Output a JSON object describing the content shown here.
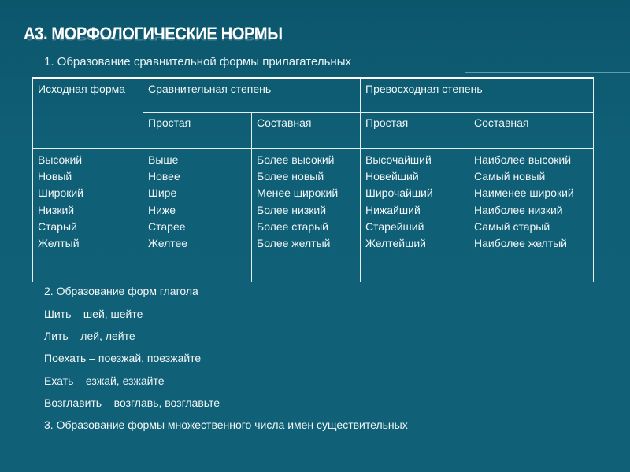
{
  "title": "А3. МОРФОЛОГИЧЕСКИЕ НОРМЫ",
  "subtitle": "1. Образование сравнительной формы прилагательных",
  "table": {
    "h_source": "Исходная форма",
    "h_comparative": "Сравнительная степень",
    "h_superlative": "Превосходная степень",
    "h_simple": "Простая",
    "h_compound": "Составная",
    "columns": [
      [
        "Высокий",
        "Новый",
        "Широкий",
        "Низкий",
        "Старый",
        "Желтый"
      ],
      [
        "Выше",
        "Новее",
        "Шире",
        "Ниже",
        "Старее",
        "Желтее"
      ],
      [
        "Более высокий",
        "Более новый",
        "Менее широкий",
        "Более низкий",
        "Более старый",
        "Более желтый"
      ],
      [
        "Высочайший",
        "Новейший",
        "Широчайший",
        "Нижайший",
        "Старейший",
        "Желтейший"
      ],
      [
        "Наиболее высокий",
        "Самый новый",
        "Наименее широкий",
        "Наиболее низкий",
        "Самый старый",
        "Наиболее желтый"
      ]
    ]
  },
  "lines": [
    "2. Образование форм глагола",
    "Шить – шей, шейте",
    "Лить – лей, лейте",
    "Поехать – поезжай, поезжайте",
    "Ехать – езжай, езжайте",
    "Возглавить – возглавь, возглавьте",
    "3. Образование формы множественного числа имен существительных"
  ]
}
